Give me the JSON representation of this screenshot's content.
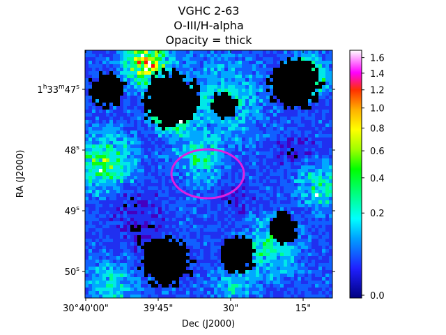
{
  "chart_data": {
    "type": "heatmap",
    "title": [
      "VGHC 2-63",
      "O-III/H-alpha",
      "Opacity = thick"
    ],
    "xlabel": "Dec (J2000)",
    "ylabel": "RA (J2000)",
    "x_ticks": [
      "30°40'00\"",
      "39'45\"",
      "30\"",
      "15\""
    ],
    "y_ticks": [
      {
        "base": "1",
        "h": "h",
        "m_val": "33",
        "m": "m",
        "s_val": "47",
        "s": "s"
      },
      {
        "base": "48",
        "s": "s"
      },
      {
        "base": "49",
        "s": "s"
      },
      {
        "base": "50",
        "s": "s"
      }
    ],
    "colorbar": {
      "colormap": "gist_ncar",
      "scale": "sqrt",
      "ticks": [
        "0.0",
        "0.2",
        "0.4",
        "0.6",
        "0.8",
        "1.0",
        "1.2",
        "1.4",
        "1.6"
      ],
      "tick_values": [
        0.0,
        0.2,
        0.4,
        0.6,
        0.8,
        1.0,
        1.2,
        1.4,
        1.6
      ],
      "range": [
        0.0,
        1.7
      ]
    },
    "overlay": {
      "shape": "ellipse",
      "color": "#e020e0"
    }
  }
}
